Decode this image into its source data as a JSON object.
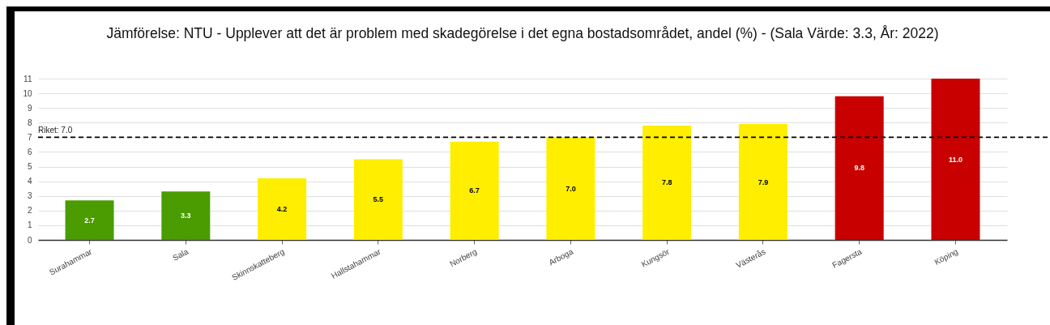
{
  "chart_data": {
    "type": "bar",
    "title": "Jämförelse: NTU - Upplever att det är problem med skadegörelse i det egna bostadsområdet, andel (%) - (Sala Värde: 3.3, År: 2022)",
    "categories": [
      "Surahammar",
      "Sala",
      "Skinnskatteberg",
      "Hallstahammar",
      "Norberg",
      "Arboga",
      "Kungsör",
      "Västerås",
      "Fagersta",
      "Köping"
    ],
    "values": [
      2.7,
      3.3,
      4.2,
      5.5,
      6.7,
      7.0,
      7.8,
      7.9,
      9.8,
      11.0
    ],
    "value_labels": [
      "2.7",
      "3.3",
      "4.2",
      "5.5",
      "6.7",
      "7.0",
      "7.8",
      "7.9",
      "9.8",
      "11.0"
    ],
    "colors": [
      "#4a9c00",
      "#4a9c00",
      "#ffee00",
      "#ffee00",
      "#ffee00",
      "#ffee00",
      "#ffee00",
      "#ffee00",
      "#c80000",
      "#c80000"
    ],
    "ylim": [
      0,
      11
    ],
    "yticks": [
      0,
      1,
      2,
      3,
      4,
      5,
      6,
      7,
      8,
      9,
      10,
      11
    ],
    "grid": "y",
    "ref_lines": [
      {
        "axis": "y",
        "value": 7.0,
        "label": "Riket: 7.0",
        "color": "#000000",
        "line_style": "dashed"
      }
    ]
  }
}
